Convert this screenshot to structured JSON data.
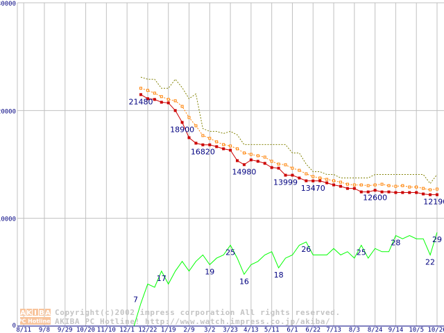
{
  "chart_data": {
    "type": "line",
    "title": "",
    "xlabel": "",
    "ylabel": "",
    "ylim": [
      0,
      30000
    ],
    "yticks": [
      "0",
      "10000",
      "20000",
      "30000"
    ],
    "ytick_values": [
      0,
      10000,
      20000,
      30000
    ],
    "grid": true,
    "x_tick_labels": [
      "8/11",
      "9/8",
      "9/29",
      "10/20",
      "11/10",
      "12/1",
      "12/22",
      "1/19",
      "2/9",
      "3/2",
      "3/23",
      "4/13",
      "5/11",
      "6/1",
      "6/22",
      "7/13",
      "8/3",
      "8/24",
      "9/14",
      "10/5",
      "10/26"
    ],
    "x_tick_index_start": -17,
    "x_tick_index_step": 3,
    "x_index_range": [
      -17,
      44
    ],
    "series": [
      {
        "name": "max_price",
        "color": "#808000",
        "style": "dotted",
        "start_index": 0,
        "values": [
          23097,
          22903,
          22903,
          22065,
          22065,
          22903,
          22129,
          21097,
          21548,
          18323,
          18065,
          18065,
          17871,
          18065,
          17742,
          16839,
          16839,
          16839,
          16839,
          16839,
          16839,
          16839,
          16065,
          16065,
          15032,
          14323,
          14323,
          14065,
          14065,
          13742,
          13742,
          13742,
          13742,
          13742,
          14065,
          14065,
          14065,
          14065,
          14065,
          14065,
          14065,
          14065,
          13226,
          14065
        ]
      },
      {
        "name": "average_price",
        "color": "#ff8000",
        "style": "dotted-hollow-square",
        "start_index": 0,
        "values": [
          22065,
          21871,
          21613,
          21290,
          21032,
          20903,
          20387,
          19355,
          18581,
          17677,
          17419,
          17097,
          16839,
          16710,
          16452,
          16065,
          15935,
          15806,
          15677,
          15290,
          15032,
          14968,
          14645,
          14452,
          14129,
          13871,
          13742,
          13613,
          13484,
          13355,
          13161,
          13097,
          13097,
          13032,
          13097,
          13161,
          13032,
          12968,
          13032,
          12903,
          12903,
          12774,
          12645,
          12710
        ]
      },
      {
        "name": "min_price",
        "color": "#cc0000",
        "style": "solid-square",
        "start_index": 0,
        "values": [
          21480,
          21100,
          21030,
          20770,
          20710,
          20000,
          18900,
          17480,
          16970,
          16820,
          16820,
          16650,
          16450,
          16320,
          15350,
          14980,
          15420,
          15290,
          15100,
          14710,
          14650,
          13999,
          14000,
          13740,
          13480,
          13470,
          13480,
          13290,
          13100,
          12970,
          12770,
          12770,
          12450,
          12450,
          12600,
          12450,
          12450,
          12390,
          12390,
          12390,
          12390,
          12260,
          12190,
          12190
        ],
        "labels": [
          {
            "index": 0,
            "text": "21480"
          },
          {
            "index": 6,
            "text": "18900"
          },
          {
            "index": 9,
            "text": "16820"
          },
          {
            "index": 15,
            "text": "14980"
          },
          {
            "index": 21,
            "text": "13999"
          },
          {
            "index": 25,
            "text": "13470"
          },
          {
            "index": 34,
            "text": "12600"
          },
          {
            "index": 43,
            "text": "12190"
          }
        ]
      },
      {
        "name": "shop_count",
        "color": "#00ff00",
        "style": "solid",
        "scale_per_unit": 300,
        "start_index": -17,
        "values": [
          0,
          0,
          0,
          0,
          0,
          0,
          0,
          0,
          0,
          0,
          0,
          0,
          0,
          0,
          0,
          0,
          0,
          7,
          13,
          12,
          17,
          13,
          17,
          20,
          17,
          20,
          22,
          19,
          21,
          22,
          25,
          21,
          16,
          19,
          20,
          22,
          23,
          18,
          21,
          22,
          25,
          26,
          22,
          22,
          22,
          24,
          22,
          23,
          21,
          25,
          21,
          24,
          23,
          23,
          28,
          27,
          28,
          27,
          27,
          22,
          29
        ],
        "labels": [
          {
            "index": 0,
            "text": "7"
          },
          {
            "index": 3,
            "text": "17"
          },
          {
            "index": 10,
            "text": "19"
          },
          {
            "index": 13,
            "text": "25"
          },
          {
            "index": 15,
            "text": "16"
          },
          {
            "index": 20,
            "text": "18"
          },
          {
            "index": 24,
            "text": "26"
          },
          {
            "index": 32,
            "text": "25"
          },
          {
            "index": 37,
            "text": "28"
          },
          {
            "index": 42,
            "text": "22"
          },
          {
            "index": 43,
            "text": "29"
          }
        ]
      }
    ],
    "watermark": {
      "logo_letters": [
        "A",
        "K",
        "I",
        "B",
        "A"
      ],
      "logo_sub": "PC Hotline!",
      "line1": "Copyright(c)2002 impress corporation All rights reserved.",
      "line2": "AKIBA PC Hotline!  http://www.watch.impress.co.jp/akiba/"
    }
  }
}
